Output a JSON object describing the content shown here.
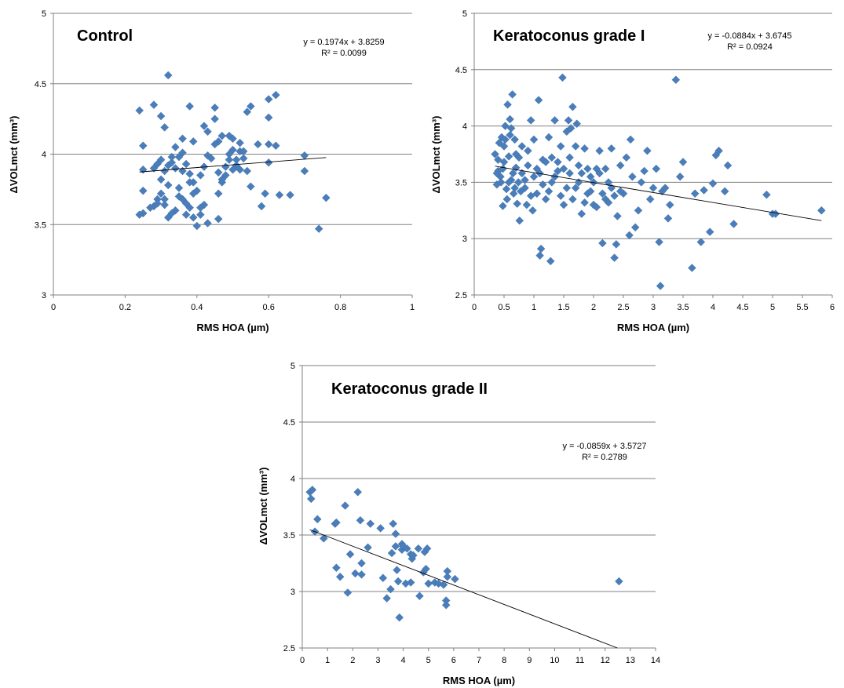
{
  "chart_data": [
    {
      "type": "scatter",
      "title": "Control",
      "xlabel": "RMS HOA (µm)",
      "ylabel": "ΔVOLmct (mm³)",
      "xlim": [
        0,
        1
      ],
      "ylim": [
        3,
        5
      ],
      "xticks": [
        "0",
        "0.2",
        "0.4",
        "0.6",
        "0.8",
        "1"
      ],
      "yticks": [
        "3",
        "3.5",
        "4",
        "4.5",
        "5"
      ],
      "grid": "horizontal",
      "marker_color": "#4A7EBB",
      "equation": "y = 0.1974x + 3.8259",
      "r2": "R² = 0.0099",
      "trend": {
        "slope": 0.1974,
        "intercept": 3.8259,
        "x_range": [
          0.24,
          0.76
        ]
      },
      "points": [
        [
          0.24,
          4.31
        ],
        [
          0.25,
          4.06
        ],
        [
          0.28,
          4.35
        ],
        [
          0.3,
          4.27
        ],
        [
          0.31,
          4.19
        ],
        [
          0.32,
          4.56
        ],
        [
          0.34,
          4.05
        ],
        [
          0.36,
          4.11
        ],
        [
          0.38,
          4.34
        ],
        [
          0.39,
          4.09
        ],
        [
          0.42,
          4.2
        ],
        [
          0.43,
          4.16
        ],
        [
          0.45,
          4.33
        ],
        [
          0.45,
          4.25
        ],
        [
          0.46,
          4.09
        ],
        [
          0.47,
          4.13
        ],
        [
          0.49,
          4.13
        ],
        [
          0.5,
          4.11
        ],
        [
          0.52,
          4.08
        ],
        [
          0.54,
          4.3
        ],
        [
          0.55,
          4.34
        ],
        [
          0.57,
          4.07
        ],
        [
          0.6,
          4.39
        ],
        [
          0.6,
          4.26
        ],
        [
          0.62,
          4.42
        ],
        [
          0.6,
          4.07
        ],
        [
          0.62,
          4.06
        ],
        [
          0.7,
          3.99
        ],
        [
          0.7,
          3.88
        ],
        [
          0.76,
          3.69
        ],
        [
          0.74,
          3.47
        ],
        [
          0.66,
          3.71
        ],
        [
          0.63,
          3.71
        ],
        [
          0.6,
          3.94
        ],
        [
          0.59,
          3.72
        ],
        [
          0.58,
          3.63
        ],
        [
          0.55,
          3.77
        ],
        [
          0.54,
          3.88
        ],
        [
          0.53,
          3.97
        ],
        [
          0.52,
          4.02
        ],
        [
          0.51,
          3.92
        ],
        [
          0.5,
          3.89
        ],
        [
          0.49,
          3.96
        ],
        [
          0.48,
          3.85
        ],
        [
          0.47,
          3.8
        ],
        [
          0.46,
          3.72
        ],
        [
          0.46,
          3.54
        ],
        [
          0.43,
          3.51
        ],
        [
          0.42,
          3.64
        ],
        [
          0.41,
          3.57
        ],
        [
          0.4,
          3.49
        ],
        [
          0.39,
          3.55
        ],
        [
          0.38,
          3.62
        ],
        [
          0.37,
          3.57
        ],
        [
          0.36,
          3.68
        ],
        [
          0.35,
          3.76
        ],
        [
          0.34,
          3.6
        ],
        [
          0.33,
          3.58
        ],
        [
          0.32,
          3.55
        ],
        [
          0.31,
          3.64
        ],
        [
          0.3,
          3.72
        ],
        [
          0.29,
          3.68
        ],
        [
          0.28,
          3.63
        ],
        [
          0.27,
          3.62
        ],
        [
          0.25,
          3.58
        ],
        [
          0.24,
          3.57
        ],
        [
          0.25,
          3.74
        ],
        [
          0.25,
          3.89
        ],
        [
          0.28,
          3.9
        ],
        [
          0.29,
          3.93
        ],
        [
          0.3,
          3.96
        ],
        [
          0.31,
          3.88
        ],
        [
          0.32,
          3.92
        ],
        [
          0.33,
          3.94
        ],
        [
          0.34,
          3.9
        ],
        [
          0.35,
          3.98
        ],
        [
          0.36,
          4.01
        ],
        [
          0.37,
          3.93
        ],
        [
          0.38,
          3.86
        ],
        [
          0.39,
          3.8
        ],
        [
          0.4,
          3.74
        ],
        [
          0.41,
          3.85
        ],
        [
          0.42,
          3.91
        ],
        [
          0.43,
          3.99
        ],
        [
          0.44,
          3.97
        ],
        [
          0.45,
          4.07
        ],
        [
          0.46,
          3.87
        ],
        [
          0.47,
          3.82
        ],
        [
          0.48,
          3.91
        ],
        [
          0.49,
          4.0
        ],
        [
          0.5,
          4.03
        ],
        [
          0.51,
          3.96
        ],
        [
          0.52,
          3.89
        ],
        [
          0.53,
          4.02
        ],
        [
          0.3,
          3.82
        ],
        [
          0.32,
          3.78
        ],
        [
          0.35,
          3.7
        ],
        [
          0.37,
          3.65
        ],
        [
          0.39,
          3.72
        ],
        [
          0.41,
          3.62
        ],
        [
          0.29,
          3.65
        ],
        [
          0.31,
          3.68
        ],
        [
          0.33,
          3.98
        ],
        [
          0.36,
          3.88
        ],
        [
          0.38,
          3.8
        ]
      ]
    },
    {
      "type": "scatter",
      "title": "Keratoconus grade I",
      "xlabel": "RMS HOA (µm)",
      "ylabel": "ΔVOLmct (mm³)",
      "xlim": [
        0,
        6
      ],
      "ylim": [
        2.5,
        5
      ],
      "xticks": [
        "0",
        "0.5",
        "1",
        "1.5",
        "2",
        "2.5",
        "3",
        "3.5",
        "4",
        "4.5",
        "5",
        "5.5",
        "6"
      ],
      "yticks": [
        "2.5",
        "3",
        "3.5",
        "4",
        "4.5",
        "5"
      ],
      "grid": "horizontal",
      "marker_color": "#4A7EBB",
      "equation": "y = -0.0884x + 3.6745",
      "r2": "R² = 0.0924",
      "trend": {
        "slope": -0.0884,
        "intercept": 3.6745,
        "x_range": [
          0.35,
          5.82
        ]
      },
      "points": [
        [
          0.35,
          3.75
        ],
        [
          0.38,
          3.48
        ],
        [
          0.4,
          3.6
        ],
        [
          0.42,
          3.85
        ],
        [
          0.44,
          3.55
        ],
        [
          0.46,
          3.9
        ],
        [
          0.48,
          3.29
        ],
        [
          0.5,
          3.68
        ],
        [
          0.52,
          4.0
        ],
        [
          0.54,
          3.44
        ],
        [
          0.56,
          4.19
        ],
        [
          0.58,
          3.73
        ],
        [
          0.6,
          4.06
        ],
        [
          0.62,
          3.52
        ],
        [
          0.64,
          4.28
        ],
        [
          0.66,
          3.4
        ],
        [
          0.68,
          3.88
        ],
        [
          0.7,
          3.63
        ],
        [
          0.72,
          3.31
        ],
        [
          0.74,
          3.5
        ],
        [
          0.76,
          3.16
        ],
        [
          0.8,
          3.82
        ],
        [
          0.85,
          3.45
        ],
        [
          0.9,
          3.65
        ],
        [
          0.95,
          4.05
        ],
        [
          1.0,
          3.55
        ],
        [
          1.05,
          3.4
        ],
        [
          1.08,
          4.23
        ],
        [
          1.1,
          2.85
        ],
        [
          1.12,
          2.91
        ],
        [
          1.15,
          3.7
        ],
        [
          1.2,
          3.35
        ],
        [
          1.25,
          3.9
        ],
        [
          1.28,
          2.8
        ],
        [
          1.3,
          3.5
        ],
        [
          1.35,
          4.05
        ],
        [
          1.4,
          3.6
        ],
        [
          1.45,
          3.82
        ],
        [
          1.48,
          4.43
        ],
        [
          1.5,
          3.3
        ],
        [
          1.55,
          3.95
        ],
        [
          1.6,
          3.58
        ],
        [
          1.65,
          4.17
        ],
        [
          1.7,
          3.45
        ],
        [
          1.75,
          3.65
        ],
        [
          1.8,
          3.22
        ],
        [
          1.85,
          3.8
        ],
        [
          1.9,
          3.4
        ],
        [
          1.95,
          3.55
        ],
        [
          2.0,
          3.3
        ],
        [
          2.05,
          3.62
        ],
        [
          2.1,
          3.78
        ],
        [
          2.15,
          2.96
        ],
        [
          2.2,
          3.35
        ],
        [
          2.25,
          3.5
        ],
        [
          2.3,
          3.8
        ],
        [
          2.35,
          2.83
        ],
        [
          2.38,
          2.95
        ],
        [
          2.4,
          3.2
        ],
        [
          2.45,
          3.65
        ],
        [
          2.5,
          3.4
        ],
        [
          2.55,
          3.72
        ],
        [
          2.6,
          3.03
        ],
        [
          2.62,
          3.88
        ],
        [
          2.65,
          3.55
        ],
        [
          2.7,
          3.1
        ],
        [
          2.75,
          3.25
        ],
        [
          2.8,
          3.5
        ],
        [
          2.85,
          3.6
        ],
        [
          2.9,
          3.78
        ],
        [
          2.95,
          3.35
        ],
        [
          3.0,
          3.45
        ],
        [
          3.05,
          3.62
        ],
        [
          3.1,
          2.97
        ],
        [
          3.12,
          2.58
        ],
        [
          3.15,
          3.42
        ],
        [
          3.2,
          3.45
        ],
        [
          3.25,
          3.18
        ],
        [
          3.28,
          3.3
        ],
        [
          3.38,
          4.41
        ],
        [
          3.45,
          3.55
        ],
        [
          3.5,
          3.68
        ],
        [
          3.65,
          2.74
        ],
        [
          3.7,
          3.4
        ],
        [
          3.8,
          2.97
        ],
        [
          3.85,
          3.43
        ],
        [
          3.95,
          3.06
        ],
        [
          4.0,
          3.49
        ],
        [
          4.05,
          3.74
        ],
        [
          4.1,
          3.78
        ],
        [
          4.2,
          3.42
        ],
        [
          4.25,
          3.65
        ],
        [
          4.35,
          3.13
        ],
        [
          4.9,
          3.39
        ],
        [
          5.0,
          3.22
        ],
        [
          5.05,
          3.22
        ],
        [
          5.82,
          3.25
        ],
        [
          0.45,
          3.5
        ],
        [
          0.55,
          3.35
        ],
        [
          0.65,
          3.58
        ],
        [
          0.75,
          3.72
        ],
        [
          0.85,
          3.52
        ],
        [
          0.95,
          3.38
        ],
        [
          1.05,
          3.62
        ],
        [
          1.15,
          3.48
        ],
        [
          1.25,
          3.42
        ],
        [
          1.35,
          3.55
        ],
        [
          1.45,
          3.38
        ],
        [
          1.55,
          3.45
        ],
        [
          1.65,
          3.35
        ],
        [
          1.75,
          3.5
        ],
        [
          1.85,
          3.32
        ],
        [
          1.95,
          3.42
        ],
        [
          2.05,
          3.28
        ],
        [
          2.15,
          3.4
        ],
        [
          2.25,
          3.32
        ],
        [
          2.35,
          3.38
        ],
        [
          2.45,
          3.42
        ],
        [
          0.4,
          3.7
        ],
        [
          0.5,
          3.82
        ],
        [
          0.6,
          3.92
        ],
        [
          0.7,
          3.75
        ],
        [
          0.8,
          3.58
        ],
        [
          0.9,
          3.78
        ],
        [
          1.0,
          3.88
        ],
        [
          1.1,
          3.58
        ],
        [
          1.2,
          3.68
        ],
        [
          1.3,
          3.72
        ],
        [
          1.4,
          3.68
        ],
        [
          1.5,
          3.62
        ],
        [
          1.6,
          3.72
        ],
        [
          1.7,
          3.82
        ],
        [
          1.8,
          3.58
        ],
        [
          1.9,
          3.62
        ],
        [
          2.0,
          3.5
        ],
        [
          2.1,
          3.58
        ],
        [
          2.2,
          3.62
        ],
        [
          2.3,
          3.45
        ],
        [
          0.38,
          3.58
        ],
        [
          0.48,
          3.62
        ],
        [
          0.58,
          3.5
        ],
        [
          0.68,
          3.45
        ],
        [
          0.78,
          3.42
        ],
        [
          0.88,
          3.3
        ],
        [
          0.98,
          3.25
        ],
        [
          1.62,
          3.98
        ],
        [
          1.72,
          4.02
        ],
        [
          1.58,
          4.05
        ],
        [
          0.62,
          3.98
        ],
        [
          0.52,
          3.88
        ]
      ]
    },
    {
      "type": "scatter",
      "title": "Keratoconus grade II",
      "xlabel": "RMS HOA (µm)",
      "ylabel": "ΔVOLmct (mm³)",
      "xlim": [
        0,
        14
      ],
      "ylim": [
        2.5,
        5
      ],
      "xticks": [
        "0",
        "1",
        "2",
        "3",
        "4",
        "5",
        "6",
        "7",
        "8",
        "9",
        "10",
        "11",
        "12",
        "13",
        "14"
      ],
      "yticks": [
        "2.5",
        "3",
        "3.5",
        "4",
        "4.5",
        "5"
      ],
      "grid": "horizontal",
      "marker_color": "#4A7EBB",
      "equation": "y = -0.0859x + 3.5727",
      "r2": "R² = 0.2789",
      "trend": {
        "slope": -0.0859,
        "intercept": 3.5727,
        "x_range": [
          0.3,
          12.5
        ]
      },
      "points": [
        [
          0.3,
          3.88
        ],
        [
          0.35,
          3.82
        ],
        [
          0.4,
          3.9
        ],
        [
          0.5,
          3.53
        ],
        [
          0.6,
          3.64
        ],
        [
          0.85,
          3.47
        ],
        [
          1.3,
          3.6
        ],
        [
          1.35,
          3.61
        ],
        [
          1.35,
          3.21
        ],
        [
          1.5,
          3.13
        ],
        [
          1.7,
          3.76
        ],
        [
          1.8,
          2.99
        ],
        [
          1.9,
          3.33
        ],
        [
          2.1,
          3.16
        ],
        [
          2.2,
          3.88
        ],
        [
          2.3,
          3.63
        ],
        [
          2.35,
          3.15
        ],
        [
          2.35,
          3.25
        ],
        [
          2.6,
          3.39
        ],
        [
          2.7,
          3.6
        ],
        [
          3.1,
          3.56
        ],
        [
          3.2,
          3.12
        ],
        [
          3.35,
          2.94
        ],
        [
          3.5,
          3.02
        ],
        [
          3.55,
          3.34
        ],
        [
          3.6,
          3.6
        ],
        [
          3.7,
          3.4
        ],
        [
          3.7,
          3.51
        ],
        [
          3.75,
          3.19
        ],
        [
          3.8,
          3.09
        ],
        [
          3.85,
          2.77
        ],
        [
          3.95,
          3.42
        ],
        [
          3.95,
          3.37
        ],
        [
          4.0,
          3.4
        ],
        [
          4.1,
          3.07
        ],
        [
          4.15,
          3.38
        ],
        [
          4.3,
          3.08
        ],
        [
          4.3,
          3.33
        ],
        [
          4.35,
          3.29
        ],
        [
          4.4,
          3.32
        ],
        [
          4.6,
          3.38
        ],
        [
          4.65,
          2.96
        ],
        [
          4.8,
          3.17
        ],
        [
          4.85,
          3.35
        ],
        [
          4.9,
          3.2
        ],
        [
          4.95,
          3.38
        ],
        [
          5.0,
          3.07
        ],
        [
          5.25,
          3.08
        ],
        [
          5.4,
          3.07
        ],
        [
          5.6,
          3.06
        ],
        [
          5.7,
          2.92
        ],
        [
          5.7,
          2.88
        ],
        [
          5.75,
          3.18
        ],
        [
          5.75,
          3.13
        ],
        [
          6.05,
          3.11
        ],
        [
          12.55,
          3.09
        ]
      ]
    }
  ]
}
